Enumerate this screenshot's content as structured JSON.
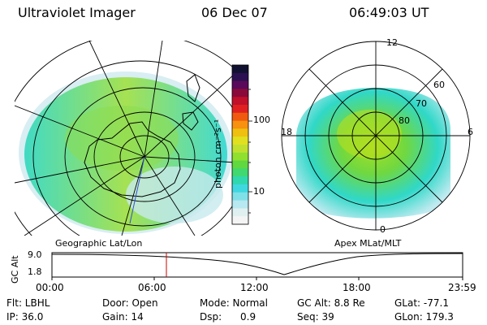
{
  "header": {
    "instrument": "Ultraviolet Imager",
    "date": "06 Dec 07",
    "time": "06:49:03 UT"
  },
  "panels": {
    "geographic_label": "Geographic Lat/Lon",
    "apex_label": "Apex MLat/MLT",
    "mlt_labels": {
      "top": "12",
      "left": "18",
      "right": "6",
      "bottom": "0"
    },
    "mlat_labels": [
      "60",
      "70",
      "80"
    ]
  },
  "colorbar": {
    "unit_label": "photon cm⁻²s⁻¹",
    "ticks": [
      "100",
      "10"
    ],
    "colors": [
      "#101030",
      "#2a1050",
      "#5a0a5a",
      "#8a0a3a",
      "#c0102a",
      "#e02020",
      "#f05a10",
      "#f89010",
      "#f0c010",
      "#e0e020",
      "#c0e030",
      "#90e030",
      "#60d840",
      "#40d870",
      "#30d8b0",
      "#40d8e0",
      "#80e0e8",
      "#b8e8f0",
      "#e0f0f0",
      "#f4f4f4"
    ]
  },
  "gc_plot": {
    "axis_label": "GC Alt",
    "y_ticks": [
      "9.0",
      "1.8"
    ],
    "x_ticks": [
      "00:00",
      "06:00",
      "12:00",
      "18:00",
      "23:59"
    ],
    "current_time_color": "#cc0000"
  },
  "info": {
    "flt": "Flt: LBHL",
    "ip": "IP: 36.0",
    "door": "Door: Open",
    "gain": "Gain: 14",
    "mode": "Mode: Normal",
    "dsp": "Dsp:      0.9",
    "gc_alt": "GC Alt: 8.8 Re",
    "seq": "Seq: 39",
    "glat": "GLat: -77.1",
    "glon": "GLon: 179.3"
  }
}
